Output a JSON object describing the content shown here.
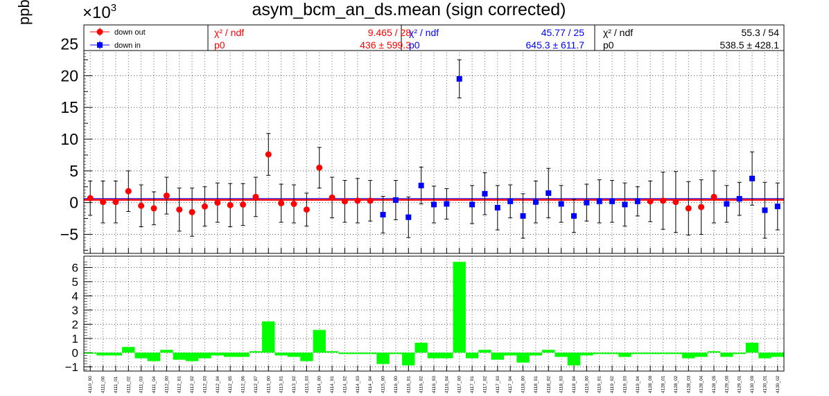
{
  "title": "asym_bcm_an_ds.mean (sign corrected)",
  "exponent": {
    "base": "×10",
    "power": "3"
  },
  "ylabel": "ppb",
  "colors": {
    "down_out": "#ff0000",
    "down_in": "#0000ff",
    "diff_bars": "#00ff00",
    "fit_line": "#ff0000"
  },
  "legend": {
    "entries": [
      {
        "label": "down out",
        "marker": "circle",
        "color": "#ff0000"
      },
      {
        "label": "down in",
        "marker": "square",
        "color": "#0000ff"
      }
    ]
  },
  "fit_stats": [
    {
      "chi_label": "χ² / ndf",
      "chi_value": "9.465 / 28",
      "p0_label": "p0",
      "p0_value": "436 ± 599.3",
      "color": "#ff0000"
    },
    {
      "chi_label": "χ² / ndf",
      "chi_value": "45.77 / 25",
      "p0_label": "p0",
      "p0_value": "645.3 ± 611.7",
      "color": "#0000ff"
    },
    {
      "chi_label": "χ² / ndf",
      "chi_value": "55.3 / 54",
      "p0_label": "p0",
      "p0_value": "538.5 ± 428.1",
      "color": "#000000"
    }
  ],
  "chart_data": [
    {
      "type": "scatter",
      "title": "asym_bcm_an_ds.mean (sign corrected)",
      "ylabel": "ppb",
      "y_multiplier": "×10³",
      "ylim": [
        -8.0,
        28.0
      ],
      "grid": true,
      "legend_position": "top",
      "categories": [
        "4110_00",
        "4111_00",
        "4111_01",
        "4111_02",
        "4111_03",
        "4111_04",
        "4112_00",
        "4112_01",
        "4112_02",
        "4112_03",
        "4112_04",
        "4112_05",
        "4112_06",
        "4112_07",
        "4113_00",
        "4113_01",
        "4113_02",
        "4113_03",
        "4114_00",
        "4114_01",
        "4114_02",
        "4114_03",
        "4114_04",
        "4115_00",
        "4116_00",
        "4116_01",
        "4116_02",
        "4116_03",
        "4116_04",
        "4117_00",
        "4117_01",
        "4117_02",
        "4117_03",
        "4117_04",
        "4118_00",
        "4118_01",
        "4118_02",
        "4118_03",
        "4118_04",
        "4119_00",
        "4119_01",
        "4119_02",
        "4119_03",
        "4119_04",
        "4128_00",
        "4128_01",
        "4128_02",
        "4128_03",
        "4128_04",
        "4128_05",
        "4129_00",
        "4129_01",
        "4130_00",
        "4130_01",
        "4130_02"
      ],
      "series": [
        {
          "name": "down out",
          "marker": "circle",
          "color": "#ff0000",
          "points": [
            {
              "x": "4110_00",
              "y": 0.7,
              "err": 2.7
            },
            {
              "x": "4111_00",
              "y": 0.1,
              "err": 3.3
            },
            {
              "x": "4111_01",
              "y": 0.1,
              "err": 3.3
            },
            {
              "x": "4111_02",
              "y": 1.8,
              "err": 3.2
            },
            {
              "x": "4111_03",
              "y": -0.5,
              "err": 3.3
            },
            {
              "x": "4111_04",
              "y": -0.9,
              "err": 2.6
            },
            {
              "x": "4112_00",
              "y": 1.1,
              "err": 2.9
            },
            {
              "x": "4112_01",
              "y": -1.1,
              "err": 3.4
            },
            {
              "x": "4112_02",
              "y": -1.5,
              "err": 3.8
            },
            {
              "x": "4112_03",
              "y": -0.6,
              "err": 3.1
            },
            {
              "x": "4112_04",
              "y": 0.0,
              "err": 3.1
            },
            {
              "x": "4112_05",
              "y": -0.4,
              "err": 3.4
            },
            {
              "x": "4112_06",
              "y": -0.3,
              "err": 3.3
            },
            {
              "x": "4112_07",
              "y": 0.9,
              "err": 3.1
            },
            {
              "x": "4113_00",
              "y": 7.6,
              "err": 3.3
            },
            {
              "x": "4113_01",
              "y": -0.1,
              "err": 3.0
            },
            {
              "x": "4113_02",
              "y": -0.2,
              "err": 3.0
            },
            {
              "x": "4113_03",
              "y": -1.1,
              "err": 2.6
            },
            {
              "x": "4114_00",
              "y": 5.5,
              "err": 3.2
            },
            {
              "x": "4114_01",
              "y": 0.8,
              "err": 3.2
            },
            {
              "x": "4114_02",
              "y": 0.2,
              "err": 3.3
            },
            {
              "x": "4114_03",
              "y": 0.3,
              "err": 3.5
            },
            {
              "x": "4114_04",
              "y": 0.3,
              "err": 3.2
            },
            {
              "x": "4128_00",
              "y": 0.2,
              "err": 3.2
            },
            {
              "x": "4128_01",
              "y": 0.3,
              "err": 4.5
            },
            {
              "x": "4128_02",
              "y": 0.1,
              "err": 4.8
            },
            {
              "x": "4128_03",
              "y": -0.9,
              "err": 4.2
            },
            {
              "x": "4128_04",
              "y": -0.7,
              "err": 4.3
            },
            {
              "x": "4128_05",
              "y": 0.9,
              "err": 4.1
            }
          ]
        },
        {
          "name": "down in",
          "marker": "square",
          "color": "#0000ff",
          "points": [
            {
              "x": "4115_00",
              "y": -1.9,
              "err": 2.9
            },
            {
              "x": "4116_00",
              "y": 0.4,
              "err": 3.1
            },
            {
              "x": "4116_01",
              "y": -2.3,
              "err": 3.2
            },
            {
              "x": "4116_02",
              "y": 2.7,
              "err": 2.9
            },
            {
              "x": "4116_03",
              "y": -0.3,
              "err": 2.9
            },
            {
              "x": "4116_04",
              "y": -0.2,
              "err": 2.4
            },
            {
              "x": "4117_00",
              "y": 19.5,
              "err": 3.0
            },
            {
              "x": "4117_01",
              "y": -0.3,
              "err": 3.0
            },
            {
              "x": "4117_02",
              "y": 1.4,
              "err": 3.3
            },
            {
              "x": "4117_03",
              "y": -0.8,
              "err": 3.5
            },
            {
              "x": "4117_04",
              "y": 0.2,
              "err": 2.6
            },
            {
              "x": "4118_00",
              "y": -2.1,
              "err": 3.5
            },
            {
              "x": "4118_01",
              "y": 0.1,
              "err": 3.3
            },
            {
              "x": "4118_02",
              "y": 1.5,
              "err": 3.9
            },
            {
              "x": "4118_03",
              "y": -0.2,
              "err": 2.9
            },
            {
              "x": "4118_04",
              "y": -2.1,
              "err": 2.6
            },
            {
              "x": "4119_00",
              "y": 0.0,
              "err": 2.9
            },
            {
              "x": "4119_01",
              "y": 0.2,
              "err": 3.4
            },
            {
              "x": "4119_02",
              "y": 0.2,
              "err": 3.3
            },
            {
              "x": "4119_03",
              "y": -0.3,
              "err": 3.4
            },
            {
              "x": "4119_04",
              "y": 0.2,
              "err": 2.3
            },
            {
              "x": "4129_00",
              "y": -0.2,
              "err": 2.9
            },
            {
              "x": "4129_01",
              "y": 0.6,
              "err": 2.6
            },
            {
              "x": "4130_00",
              "y": 3.8,
              "err": 4.2
            },
            {
              "x": "4130_01",
              "y": -1.2,
              "err": 4.4
            },
            {
              "x": "4130_02",
              "y": -0.6,
              "err": 3.7
            }
          ]
        }
      ],
      "fits": [
        {
          "series": "down out",
          "p0": 436,
          "p0_err": 599.3
        },
        {
          "series": "down in",
          "p0": 645.3,
          "p0_err": 611.7
        },
        {
          "series": "all",
          "p0": 538.5,
          "p0_err": 428.1
        }
      ]
    },
    {
      "type": "bar",
      "ylim": [
        -1.3,
        6.8
      ],
      "grid": true,
      "color": "#00ff00",
      "categories": [
        "4110_00",
        "4111_00",
        "4111_01",
        "4111_02",
        "4111_03",
        "4111_04",
        "4112_00",
        "4112_01",
        "4112_02",
        "4112_03",
        "4112_04",
        "4112_05",
        "4112_06",
        "4112_07",
        "4113_00",
        "4113_01",
        "4113_02",
        "4113_03",
        "4114_00",
        "4114_01",
        "4114_02",
        "4114_03",
        "4114_04",
        "4115_00",
        "4116_00",
        "4116_01",
        "4116_02",
        "4116_03",
        "4116_04",
        "4117_00",
        "4117_01",
        "4117_02",
        "4117_03",
        "4117_04",
        "4118_00",
        "4118_01",
        "4118_02",
        "4118_03",
        "4118_04",
        "4119_00",
        "4119_01",
        "4119_02",
        "4119_03",
        "4119_04",
        "4128_00",
        "4128_01",
        "4128_02",
        "4128_03",
        "4128_04",
        "4128_05",
        "4129_00",
        "4129_01",
        "4130_00",
        "4130_01",
        "4130_02"
      ],
      "values": [
        0.0,
        -0.2,
        -0.2,
        0.4,
        -0.4,
        -0.6,
        0.2,
        -0.5,
        -0.6,
        -0.4,
        -0.2,
        -0.3,
        -0.3,
        0.1,
        2.2,
        -0.2,
        -0.3,
        -0.6,
        1.6,
        0.1,
        -0.1,
        -0.1,
        -0.1,
        -0.8,
        -0.1,
        -0.9,
        0.7,
        -0.4,
        -0.4,
        6.4,
        -0.4,
        0.2,
        -0.5,
        -0.2,
        -0.7,
        -0.2,
        0.2,
        -0.3,
        -0.9,
        -0.2,
        -0.1,
        -0.1,
        -0.3,
        -0.1,
        -0.1,
        -0.1,
        -0.1,
        -0.4,
        -0.3,
        0.1,
        -0.3,
        -0.1,
        0.7,
        -0.4,
        -0.3
      ],
      "yticks": [
        "−1",
        "0",
        "1",
        "2",
        "3",
        "4",
        "5",
        "6"
      ]
    }
  ]
}
